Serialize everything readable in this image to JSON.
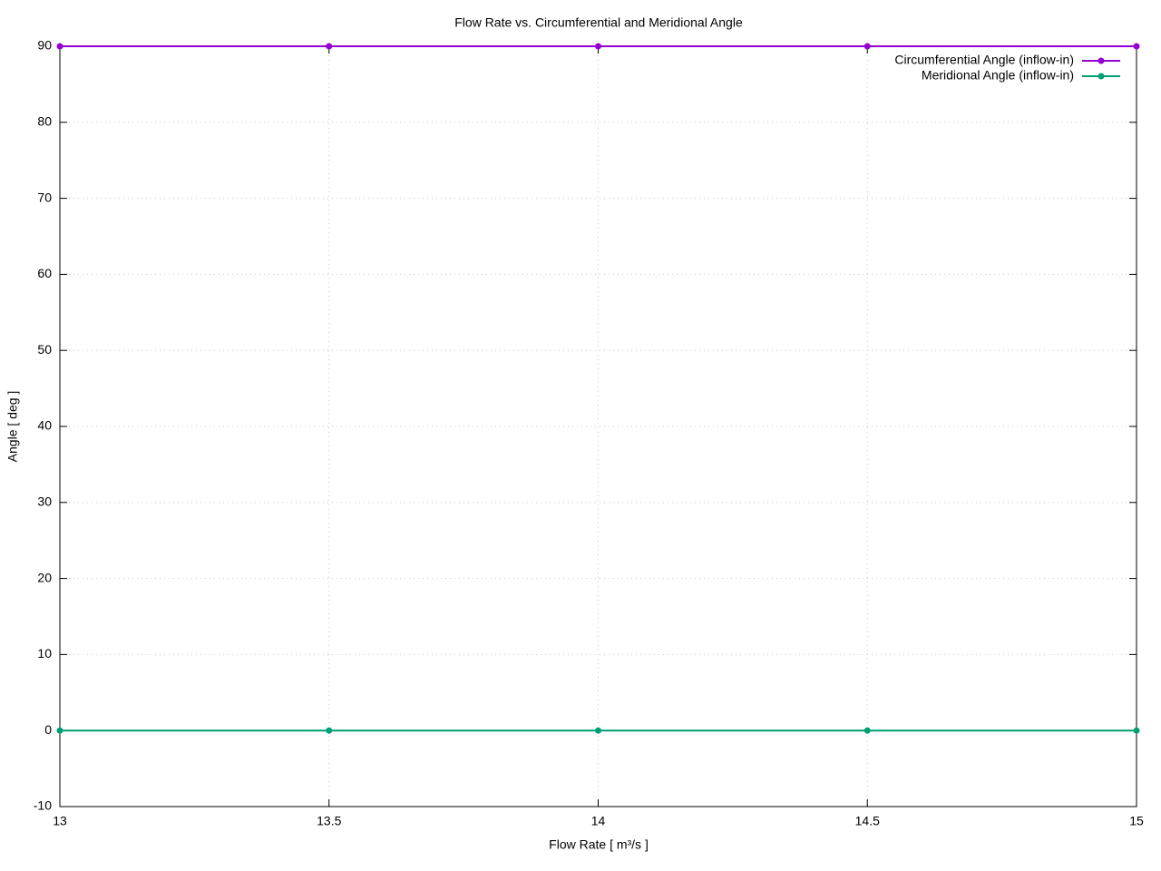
{
  "chart_data": {
    "type": "line",
    "title": "Flow Rate vs. Circumferential and Meridional Angle",
    "xlabel": "Flow Rate [ m³/s ]",
    "ylabel": "Angle [ deg ]",
    "x": [
      13,
      13.5,
      14,
      14.5,
      15
    ],
    "series": [
      {
        "name": "Circumferential Angle (inflow-in)",
        "color": "#9400d3",
        "values": [
          90,
          90,
          90,
          90,
          90
        ]
      },
      {
        "name": "Meridional Angle (inflow-in)",
        "color": "#009e73",
        "values": [
          0,
          0,
          0,
          0,
          0
        ]
      }
    ],
    "xlim": [
      13,
      15
    ],
    "xticks": [
      13,
      13.5,
      14,
      14.5,
      15
    ],
    "ylim": [
      -10,
      90
    ],
    "yticks": [
      -10,
      0,
      10,
      20,
      30,
      40,
      50,
      60,
      70,
      80,
      90
    ],
    "grid": true,
    "legend": "top-right"
  }
}
